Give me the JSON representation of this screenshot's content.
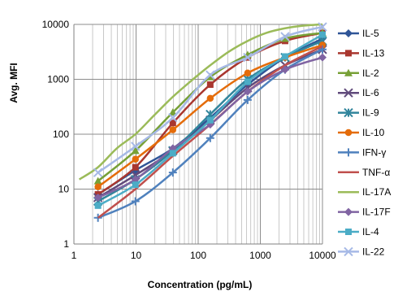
{
  "chart_data": {
    "type": "line",
    "title": "",
    "xlabel": "Concentration (pg/mL)",
    "ylabel": "Avg. MFI",
    "x_scale": "log",
    "y_scale": "log",
    "xlim": [
      1,
      10000
    ],
    "ylim": [
      1,
      10000
    ],
    "x_ticks": [
      "1",
      "10",
      "100",
      "1000",
      "10000"
    ],
    "y_ticks": [
      "1",
      "10",
      "100",
      "1000",
      "10000"
    ],
    "grid": "vertical minor and major gridlines",
    "legend_position": "right",
    "series": [
      {
        "name": "IL-5",
        "color": "#2F5597",
        "marker": "diamond",
        "x": [
          2.44,
          9.77,
          39.1,
          156.3,
          625,
          2500,
          10000
        ],
        "y": [
          8,
          22,
          55,
          200,
          800,
          2500,
          5500
        ]
      },
      {
        "name": "IL-13",
        "color": "#A9372F",
        "marker": "square",
        "x": [
          2.44,
          9.77,
          39.1,
          156.3,
          625,
          2500,
          10000
        ],
        "y": [
          8,
          25,
          160,
          800,
          2500,
          5000,
          7000
        ]
      },
      {
        "name": "IL-2",
        "color": "#77A036",
        "marker": "triangle",
        "x": [
          2.44,
          9.77,
          39.1,
          156.3,
          625,
          2500,
          10000
        ],
        "y": [
          14,
          50,
          250,
          1100,
          2800,
          5500,
          7000
        ]
      },
      {
        "name": "IL-6",
        "color": "#604A7B",
        "marker": "x",
        "x": [
          2.44,
          9.77,
          39.1,
          156.3,
          625,
          2500,
          10000
        ],
        "y": [
          7,
          18,
          50,
          180,
          700,
          1800,
          3500
        ]
      },
      {
        "name": "IL-9",
        "color": "#31859C",
        "marker": "asterisk",
        "x": [
          2.44,
          9.77,
          39.1,
          156.3,
          625,
          2500,
          10000
        ],
        "y": [
          6,
          15,
          50,
          230,
          1000,
          2500,
          5000
        ]
      },
      {
        "name": "IL-10",
        "color": "#E46C0A",
        "marker": "circle",
        "x": [
          2.44,
          9.77,
          39.1,
          156.3,
          625,
          2500,
          10000
        ],
        "y": [
          11,
          35,
          120,
          450,
          1300,
          2500,
          4200
        ]
      },
      {
        "name": "IFN-γ",
        "color": "#4F81BD",
        "marker": "plus",
        "x": [
          2.44,
          9.77,
          39.1,
          156.3,
          625,
          2500,
          10000
        ],
        "y": [
          3,
          6,
          20,
          85,
          420,
          1500,
          3500
        ]
      },
      {
        "name": "TNF-α",
        "color": "#C0504D",
        "marker": "dash",
        "x": [
          2.44,
          9.77,
          39.1,
          156.3,
          625,
          2500,
          10000
        ],
        "y": [
          3,
          10,
          40,
          150,
          600,
          1800,
          4000
        ]
      },
      {
        "name": "IL-17A",
        "color": "#9BBB59",
        "marker": "dash",
        "x": [
          1.22,
          2.44,
          4.88,
          9.77,
          19.5,
          39.1,
          78.1,
          156.3,
          312.5,
          625,
          1250,
          2500,
          5000,
          10000
        ],
        "y": [
          15,
          25,
          55,
          100,
          220,
          480,
          950,
          1800,
          3200,
          5000,
          7000,
          8500,
          9500,
          10000
        ]
      },
      {
        "name": "IL-17F",
        "color": "#8064A2",
        "marker": "diamond",
        "x": [
          2.44,
          9.77,
          39.1,
          156.3,
          625,
          2500,
          10000
        ],
        "y": [
          7,
          15,
          55,
          150,
          600,
          1500,
          2500
        ]
      },
      {
        "name": "IL-4",
        "color": "#4BACC6",
        "marker": "square",
        "x": [
          2.44,
          9.77,
          39.1,
          156.3,
          625,
          2500,
          10000
        ],
        "y": [
          5,
          12,
          45,
          180,
          900,
          2600,
          6500
        ]
      },
      {
        "name": "IL-22",
        "color": "#A6B9E6",
        "marker": "x",
        "x": [
          2.44,
          9.77,
          39.1,
          156.3,
          625,
          2500,
          10000
        ],
        "y": [
          20,
          60,
          200,
          1200,
          2500,
          6000,
          9000
        ]
      }
    ]
  }
}
